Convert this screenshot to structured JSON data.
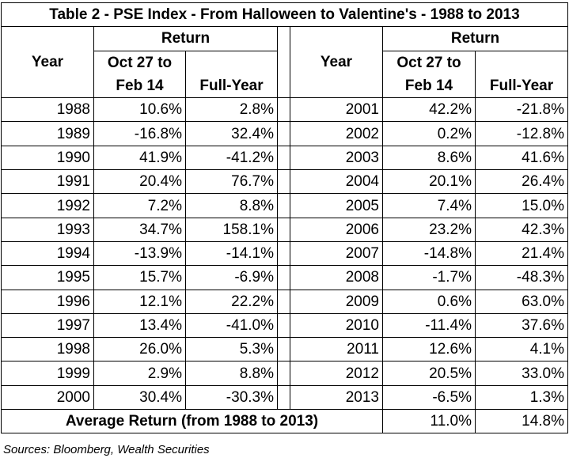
{
  "title": "Table 2 - PSE Index - From Halloween to Valentine's - 1988 to 2013",
  "headers": {
    "year": "Year",
    "return": "Return",
    "period_line1": "Oct 27 to",
    "period_line2": "Feb 14",
    "full_year": "Full-Year"
  },
  "left_rows": [
    {
      "year": "1988",
      "period": "10.6%",
      "full": "2.8%"
    },
    {
      "year": "1989",
      "period": "-16.8%",
      "full": "32.4%"
    },
    {
      "year": "1990",
      "period": "41.9%",
      "full": "-41.2%"
    },
    {
      "year": "1991",
      "period": "20.4%",
      "full": "76.7%"
    },
    {
      "year": "1992",
      "period": "7.2%",
      "full": "8.8%"
    },
    {
      "year": "1993",
      "period": "34.7%",
      "full": "158.1%"
    },
    {
      "year": "1994",
      "period": "-13.9%",
      "full": "-14.1%"
    },
    {
      "year": "1995",
      "period": "15.7%",
      "full": "-6.9%"
    },
    {
      "year": "1996",
      "period": "12.1%",
      "full": "22.2%"
    },
    {
      "year": "1997",
      "period": "13.4%",
      "full": "-41.0%"
    },
    {
      "year": "1998",
      "period": "26.0%",
      "full": "5.3%"
    },
    {
      "year": "1999",
      "period": "2.9%",
      "full": "8.8%"
    },
    {
      "year": "2000",
      "period": "30.4%",
      "full": "-30.3%"
    }
  ],
  "right_rows": [
    {
      "year": "2001",
      "period": "42.2%",
      "full": "-21.8%"
    },
    {
      "year": "2002",
      "period": "0.2%",
      "full": "-12.8%"
    },
    {
      "year": "2003",
      "period": "8.6%",
      "full": "41.6%"
    },
    {
      "year": "2004",
      "period": "20.1%",
      "full": "26.4%"
    },
    {
      "year": "2005",
      "period": "7.4%",
      "full": "15.0%"
    },
    {
      "year": "2006",
      "period": "23.2%",
      "full": "42.3%"
    },
    {
      "year": "2007",
      "period": "-14.8%",
      "full": "21.4%"
    },
    {
      "year": "2008",
      "period": "-1.7%",
      "full": "-48.3%"
    },
    {
      "year": "2009",
      "period": "0.6%",
      "full": "63.0%"
    },
    {
      "year": "2010",
      "period": "-11.4%",
      "full": "37.6%"
    },
    {
      "year": "2011",
      "period": "12.6%",
      "full": "4.1%"
    },
    {
      "year": "2012",
      "period": "20.5%",
      "full": "33.0%"
    },
    {
      "year": "2013",
      "period": "-6.5%",
      "full": "1.3%"
    }
  ],
  "average": {
    "label": "Average Return (from 1988 to 2013)",
    "period": "11.0%",
    "full": "14.8%"
  },
  "source": "Sources: Bloomberg, Wealth Securities"
}
